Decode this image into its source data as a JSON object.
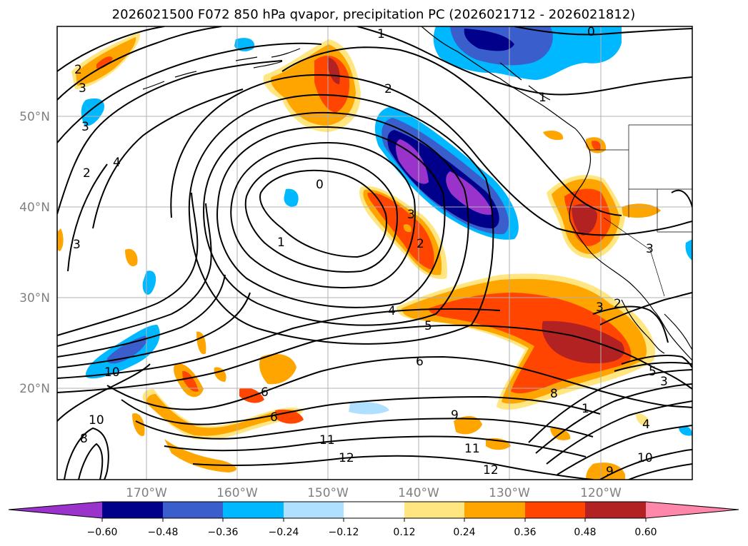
{
  "title": "2026021500 F072 850 hPa qvapor, precipitation PC (2026021712 - 2026021812)",
  "lat_labels": [
    "50°N",
    "40°N",
    "30°N",
    "20°N"
  ],
  "lon_labels": [
    "170°W",
    "160°W",
    "150°W",
    "140°W",
    "130°W",
    "120°W"
  ],
  "colorbar": {
    "ticks": [
      "−0.60",
      "−0.48",
      "−0.36",
      "−0.24",
      "−0.12",
      "0.12",
      "0.24",
      "0.36",
      "0.48",
      "0.60"
    ],
    "colors": [
      "#9933cc",
      "#00008b",
      "#3a5fcd",
      "#00b8ff",
      "#b0e0ff",
      "#ffffff",
      "#ffe680",
      "#ffa500",
      "#ff4500",
      "#b22222",
      "#ff88aa"
    ]
  },
  "contour_labels": [
    "2",
    "3",
    "3",
    "2",
    "4",
    "3",
    "0",
    "1",
    "1",
    "2",
    "0",
    "1",
    "2",
    "3",
    "4",
    "5",
    "6",
    "2",
    "3",
    "3",
    "10",
    "6",
    "6",
    "8",
    "5",
    "3",
    "9",
    "11",
    "12",
    "11",
    "12",
    "10",
    "8",
    "1",
    "4",
    "10",
    "9"
  ]
}
